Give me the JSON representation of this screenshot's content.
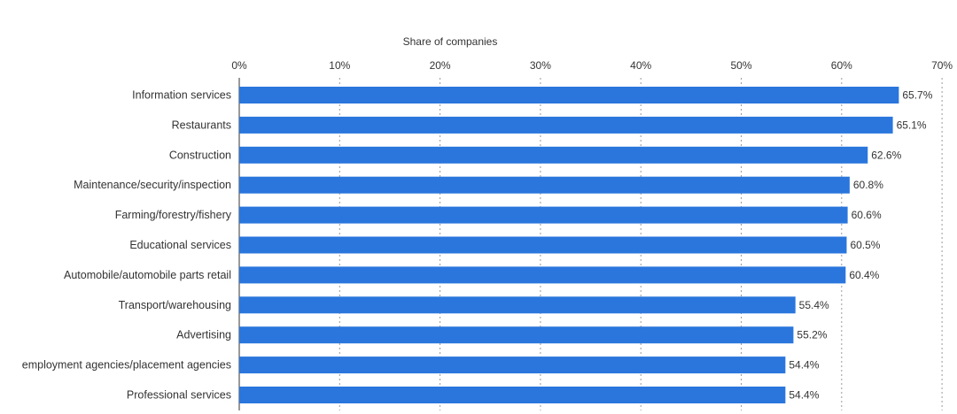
{
  "chart_data": {
    "type": "bar",
    "orientation": "horizontal",
    "x_axis_title": "Share of companies",
    "categories": [
      "Information services",
      "Restaurants",
      "Construction",
      "Maintenance/security/inspection",
      "Farming/forestry/fishery",
      "Educational services",
      "Automobile/automobile parts retail",
      "Transport/warehousing",
      "Advertising",
      "employment agencies/placement agencies",
      "Professional services"
    ],
    "values": [
      65.7,
      65.1,
      62.6,
      60.8,
      60.6,
      60.5,
      60.4,
      55.4,
      55.2,
      54.4,
      54.4
    ],
    "value_labels": [
      "65.7%",
      "65.1%",
      "62.6%",
      "60.8%",
      "60.6%",
      "60.5%",
      "60.4%",
      "55.4%",
      "55.2%",
      "54.4%",
      "54.4%"
    ],
    "xlim": [
      0,
      70
    ],
    "x_ticks": [
      0,
      10,
      20,
      30,
      40,
      50,
      60,
      70
    ],
    "x_tick_labels": [
      "0%",
      "10%",
      "20%",
      "30%",
      "40%",
      "50%",
      "60%",
      "70%"
    ],
    "axis_position": "top",
    "grid": "vertical-dotted",
    "legend": "none",
    "colors": {
      "bar": "#2a76dd",
      "grid": "#999999",
      "text": "#333333"
    }
  }
}
